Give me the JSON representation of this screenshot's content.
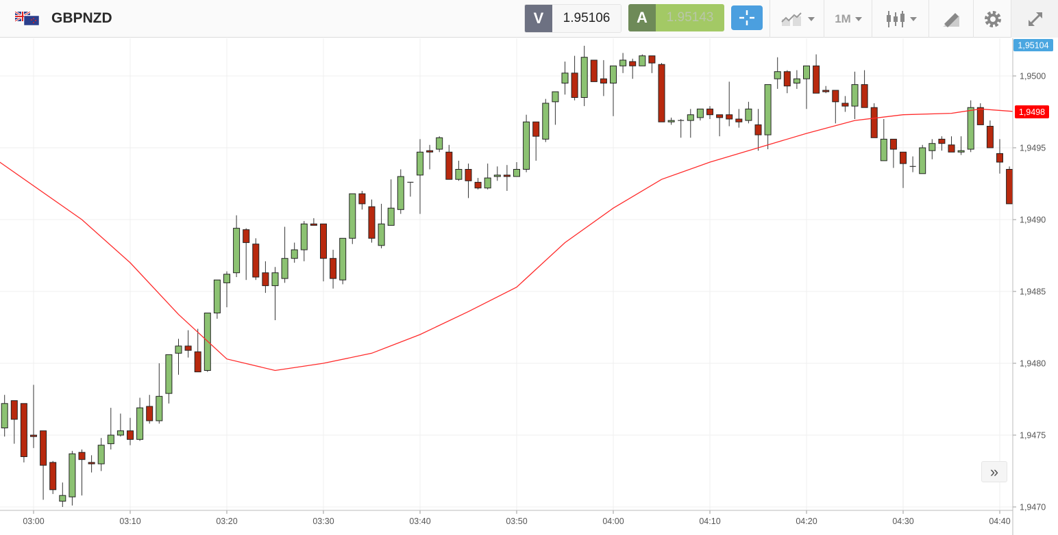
{
  "header": {
    "symbol": "GBPNZD",
    "sell": {
      "letter": "V",
      "price": "1.95106"
    },
    "buy": {
      "letter": "A",
      "price": "1.95143"
    },
    "timeframe": "1M",
    "icons": [
      "flag-gb-nz-icon",
      "crosshair-icon",
      "indicators-icon",
      "timeframe-dropdown",
      "candlestick-type-icon",
      "drawing-tools-icon",
      "gear-icon",
      "fullscreen-icon"
    ]
  },
  "colors": {
    "up": "#8cc272",
    "down": "#b8290e",
    "ma": "#ff2a2a",
    "current_label": "#4aa6e0",
    "ma_label": "#ff0000"
  },
  "scroll_button": "»",
  "chart_data": {
    "type": "candlestick",
    "title": "GBPNZD",
    "interval": "1m",
    "start_time": "02:57",
    "ylim": [
      1.94696,
      1.95026
    ],
    "y_ticks": [
      {
        "value": 1.95,
        "label": "1,9500"
      },
      {
        "value": 1.9495,
        "label": "1,9495"
      },
      {
        "value": 1.949,
        "label": "1,9490"
      },
      {
        "value": 1.9485,
        "label": "1,9485"
      },
      {
        "value": 1.948,
        "label": "1,9480"
      },
      {
        "value": 1.9475,
        "label": "1,9475"
      },
      {
        "value": 1.947,
        "label": "1,9470"
      }
    ],
    "x_ticks": [
      {
        "index": 3,
        "label": "03:00"
      },
      {
        "index": 13,
        "label": "03:10"
      },
      {
        "index": 23,
        "label": "03:20"
      },
      {
        "index": 33,
        "label": "03:30"
      },
      {
        "index": 43,
        "label": "03:40"
      },
      {
        "index": 53,
        "label": "03:50"
      },
      {
        "index": 63,
        "label": "04:00"
      },
      {
        "index": 73,
        "label": "04:10"
      },
      {
        "index": 83,
        "label": "04:20"
      },
      {
        "index": 93,
        "label": "04:30"
      },
      {
        "index": 103,
        "label": "04:40"
      }
    ],
    "current_price_label": "1,95104",
    "ma_label": "1,9498",
    "candles_ohlc": [
      [
        1.94755,
        1.94778,
        1.94749,
        1.94772
      ],
      [
        1.94774,
        1.94774,
        1.94744,
        1.94761
      ],
      [
        1.94772,
        1.94772,
        1.94731,
        1.94735
      ],
      [
        1.9475,
        1.94785,
        1.94741,
        1.94749
      ],
      [
        1.94753,
        1.94753,
        1.94705,
        1.94729
      ],
      [
        1.94731,
        1.94732,
        1.94709,
        1.94712
      ],
      [
        1.94704,
        1.94717,
        1.947,
        1.94708
      ],
      [
        1.94707,
        1.94739,
        1.94701,
        1.94737
      ],
      [
        1.94738,
        1.9474,
        1.94708,
        1.94733
      ],
      [
        1.94731,
        1.94736,
        1.94724,
        1.9473
      ],
      [
        1.9473,
        1.94748,
        1.94725,
        1.94743
      ],
      [
        1.94744,
        1.94769,
        1.9474,
        1.9475
      ],
      [
        1.9475,
        1.94765,
        1.94749,
        1.94753
      ],
      [
        1.94753,
        1.94762,
        1.94743,
        1.94747
      ],
      [
        1.94747,
        1.94776,
        1.94746,
        1.94769
      ],
      [
        1.9477,
        1.94778,
        1.94758,
        1.9476
      ],
      [
        1.9476,
        1.948,
        1.94758,
        1.94777
      ],
      [
        1.94779,
        1.94806,
        1.94772,
        1.94806
      ],
      [
        1.94807,
        1.94817,
        1.94792,
        1.94812
      ],
      [
        1.94812,
        1.94823,
        1.94804,
        1.94809
      ],
      [
        1.94808,
        1.94824,
        1.94794,
        1.94794
      ],
      [
        1.94795,
        1.94835,
        1.94794,
        1.94835
      ],
      [
        1.94835,
        1.94858,
        1.94831,
        1.94858
      ],
      [
        1.94856,
        1.94864,
        1.94839,
        1.94862
      ],
      [
        1.94863,
        1.94903,
        1.9486,
        1.94894
      ],
      [
        1.94893,
        1.94894,
        1.94858,
        1.94884
      ],
      [
        1.94883,
        1.94887,
        1.94858,
        1.9486
      ],
      [
        1.94863,
        1.94871,
        1.94849,
        1.94854
      ],
      [
        1.94854,
        1.94867,
        1.9483,
        1.94863
      ],
      [
        1.94859,
        1.94895,
        1.94856,
        1.94873
      ],
      [
        1.94873,
        1.94884,
        1.9487,
        1.94879
      ],
      [
        1.94879,
        1.94899,
        1.94871,
        1.94897
      ],
      [
        1.94897,
        1.94901,
        1.94896,
        1.94896
      ],
      [
        1.94897,
        1.94897,
        1.94857,
        1.94873
      ],
      [
        1.94873,
        1.94879,
        1.94852,
        1.94859
      ],
      [
        1.94858,
        1.94887,
        1.94855,
        1.94887
      ],
      [
        1.94887,
        1.94918,
        1.94883,
        1.94918
      ],
      [
        1.94918,
        1.9492,
        1.94907,
        1.94911
      ],
      [
        1.94909,
        1.94914,
        1.94884,
        1.94887
      ],
      [
        1.94882,
        1.94911,
        1.9488,
        1.94897
      ],
      [
        1.94896,
        1.94928,
        1.94896,
        1.94908
      ],
      [
        1.94907,
        1.94935,
        1.94904,
        1.9493
      ],
      [
        1.94926,
        1.94926,
        1.94916,
        1.94926
      ],
      [
        1.94931,
        1.94956,
        1.94904,
        1.94947
      ],
      [
        1.94948,
        1.94952,
        1.94935,
        1.94947
      ],
      [
        1.94949,
        1.94958,
        1.94947,
        1.94957
      ],
      [
        1.94947,
        1.94952,
        1.94928,
        1.94928
      ],
      [
        1.94928,
        1.94941,
        1.94927,
        1.94935
      ],
      [
        1.94935,
        1.94939,
        1.94915,
        1.94927
      ],
      [
        1.94926,
        1.94929,
        1.94921,
        1.94922
      ],
      [
        1.94922,
        1.94939,
        1.94921,
        1.94929
      ],
      [
        1.9493,
        1.94937,
        1.94927,
        1.94931
      ],
      [
        1.94931,
        1.94938,
        1.9492,
        1.9493
      ],
      [
        1.9493,
        1.9494,
        1.9493,
        1.94935
      ],
      [
        1.94935,
        1.94973,
        1.94933,
        1.94968
      ],
      [
        1.94968,
        1.94968,
        1.94941,
        1.94958
      ],
      [
        1.94956,
        1.94984,
        1.94954,
        1.94981
      ],
      [
        1.94982,
        1.94989,
        1.94966,
        1.94989
      ],
      [
        1.94995,
        1.9501,
        1.94987,
        1.95002
      ],
      [
        1.95002,
        1.95014,
        1.94983,
        1.94985
      ],
      [
        1.94985,
        1.95021,
        1.94979,
        1.95013
      ],
      [
        1.95011,
        1.95011,
        1.94996,
        1.94996
      ],
      [
        1.94998,
        1.95011,
        1.94986,
        1.94995
      ],
      [
        1.94995,
        1.95007,
        1.94972,
        1.95007
      ],
      [
        1.95007,
        1.95016,
        1.95002,
        1.95011
      ],
      [
        1.9501,
        1.95012,
        1.94998,
        1.95007
      ],
      [
        1.95007,
        1.95015,
        1.95007,
        1.95014
      ],
      [
        1.95014,
        1.95014,
        1.95002,
        1.95009
      ],
      [
        1.95008,
        1.95009,
        1.94968,
        1.94968
      ],
      [
        1.94968,
        1.94971,
        1.94966,
        1.94969
      ],
      [
        1.94969,
        1.9497,
        1.94957,
        1.94969
      ],
      [
        1.94969,
        1.94977,
        1.94957,
        1.94973
      ],
      [
        1.94971,
        1.94977,
        1.94969,
        1.94977
      ],
      [
        1.94977,
        1.94979,
        1.9497,
        1.94973
      ],
      [
        1.94973,
        1.94973,
        1.94958,
        1.94971
      ],
      [
        1.94973,
        1.94996,
        1.94965,
        1.9497
      ],
      [
        1.9497,
        1.94977,
        1.94964,
        1.94968
      ],
      [
        1.94969,
        1.94982,
        1.94967,
        1.94977
      ],
      [
        1.94966,
        1.94977,
        1.94948,
        1.94959
      ],
      [
        1.94959,
        1.94994,
        1.94949,
        1.94994
      ],
      [
        1.94998,
        1.95013,
        1.94991,
        1.95003
      ],
      [
        1.95003,
        1.95004,
        1.94988,
        1.94993
      ],
      [
        1.94995,
        1.95004,
        1.94991,
        1.94998
      ],
      [
        1.94998,
        1.95007,
        1.94977,
        1.95007
      ],
      [
        1.95007,
        1.95015,
        1.94988,
        1.94988
      ],
      [
        1.9499,
        1.94993,
        1.94988,
        1.94989
      ],
      [
        1.9499,
        1.9499,
        1.94967,
        1.94982
      ],
      [
        1.94981,
        1.94986,
        1.94975,
        1.94979
      ],
      [
        1.94979,
        1.95003,
        1.9497,
        1.94994
      ],
      [
        1.94994,
        1.95004,
        1.94978,
        1.94978
      ],
      [
        1.94978,
        1.94981,
        1.94957,
        1.94957
      ],
      [
        1.94941,
        1.9497,
        1.94941,
        1.94956
      ],
      [
        1.94956,
        1.94956,
        1.94936,
        1.94949
      ],
      [
        1.94947,
        1.94947,
        1.94922,
        1.94939
      ],
      [
        1.94937,
        1.94944,
        1.94933,
        1.94937
      ],
      [
        1.94932,
        1.94952,
        1.94932,
        1.9495
      ],
      [
        1.94948,
        1.94956,
        1.94942,
        1.94953
      ],
      [
        1.94956,
        1.94958,
        1.94948,
        1.94953
      ],
      [
        1.94952,
        1.94958,
        1.94947,
        1.94947
      ],
      [
        1.94947,
        1.94958,
        1.94945,
        1.94948
      ],
      [
        1.94949,
        1.94983,
        1.94947,
        1.94978
      ],
      [
        1.94978,
        1.94981,
        1.94966,
        1.94966
      ],
      [
        1.94965,
        1.94969,
        1.9495,
        1.9495
      ],
      [
        1.94946,
        1.94956,
        1.94932,
        1.9494
      ],
      [
        1.94935,
        1.94937,
        1.94911,
        1.94911
      ]
    ],
    "moving_average": [
      [
        -0.5,
        1.9494
      ],
      [
        8,
        1.949
      ],
      [
        13,
        1.9487
      ],
      [
        18,
        1.94834
      ],
      [
        23,
        1.94803
      ],
      [
        28,
        1.94795
      ],
      [
        33,
        1.948
      ],
      [
        38,
        1.94807
      ],
      [
        43,
        1.9482
      ],
      [
        48,
        1.94836
      ],
      [
        53,
        1.94853
      ],
      [
        58,
        1.94884
      ],
      [
        63,
        1.94908
      ],
      [
        68,
        1.94928
      ],
      [
        73,
        1.9494
      ],
      [
        78,
        1.9495
      ],
      [
        83,
        1.9496
      ],
      [
        88,
        1.94969
      ],
      [
        93,
        1.94973
      ],
      [
        98,
        1.94974
      ],
      [
        101,
        1.94977
      ],
      [
        105,
        1.94975
      ]
    ]
  }
}
